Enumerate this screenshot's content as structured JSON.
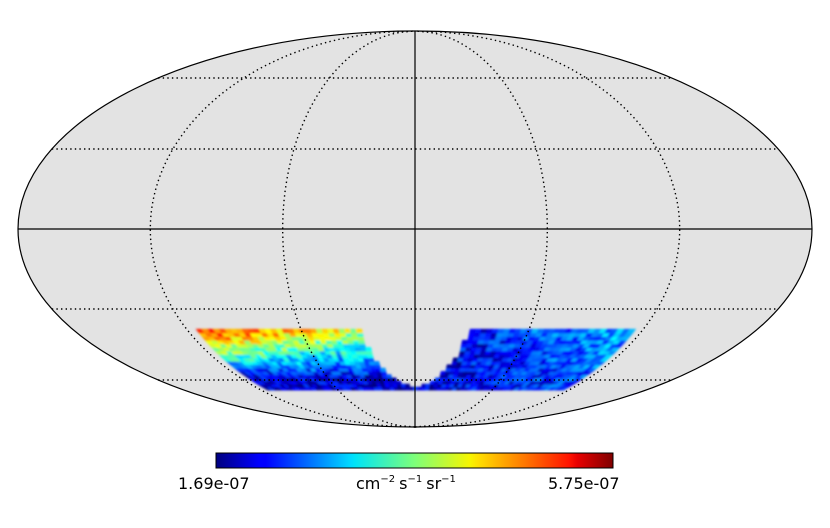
{
  "chart_data": {
    "type": "heatmap",
    "projection": "mollweide",
    "title": "",
    "background_color": "#e3e3e3",
    "graticule": {
      "meridians_deg": [
        -180,
        -120,
        -60,
        0,
        60,
        120,
        180
      ],
      "parallels_deg": [
        -60,
        -30,
        0,
        30,
        60
      ],
      "style": "dotted"
    },
    "colormap": "jet",
    "colorbar": {
      "min": 1.69e-07,
      "max": 5.75e-07,
      "min_label": "1.69e-07",
      "max_label": "5.75e-07",
      "unit_base": [
        "cm",
        "s",
        "sr"
      ],
      "unit_exponents": [
        "−2",
        "−1",
        "−1"
      ]
    },
    "data_region": {
      "lon_range_deg": [
        -115,
        115
      ],
      "lat_range_deg": [
        -65,
        -38
      ],
      "excluded_center_lon_deg": [
        -28,
        28
      ],
      "description_values": {
        "west_edge_high": 5.4e-07,
        "west_band_mean": 3.6e-07,
        "south_band_mean": 2e-07,
        "east_band_mean": 2.9e-07
      }
    }
  }
}
